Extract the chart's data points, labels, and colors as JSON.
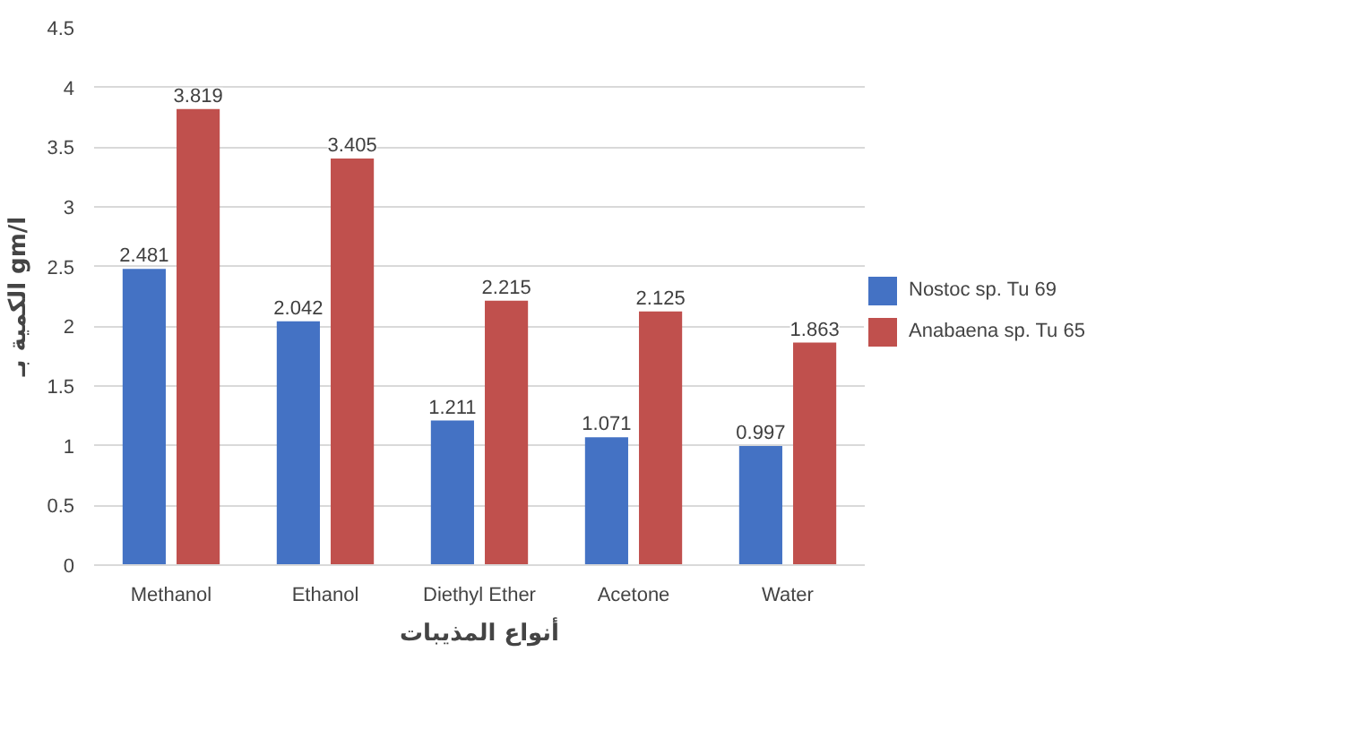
{
  "chart_data": {
    "type": "bar",
    "xlabel": "أنواع المذيبات",
    "ylabel": "الكمية بـ gm/l",
    "categories": [
      "Methanol",
      "Ethanol",
      "Diethyl Ether",
      "Acetone",
      "Water"
    ],
    "series": [
      {
        "name": "Nostoc sp. Tu 69",
        "color": "#4472c4",
        "values": [
          2.481,
          2.042,
          1.211,
          1.071,
          0.997
        ]
      },
      {
        "name": "Anabaena sp. Tu 65",
        "color": "#c0504d",
        "values": [
          3.819,
          3.405,
          2.215,
          2.125,
          1.863
        ]
      }
    ],
    "ylim": [
      0,
      4.5
    ],
    "yticks": [
      0,
      0.5,
      1,
      1.5,
      2,
      2.5,
      3,
      3.5,
      4,
      4.5
    ],
    "grid": "y",
    "legend": "right",
    "data_labels": true
  }
}
